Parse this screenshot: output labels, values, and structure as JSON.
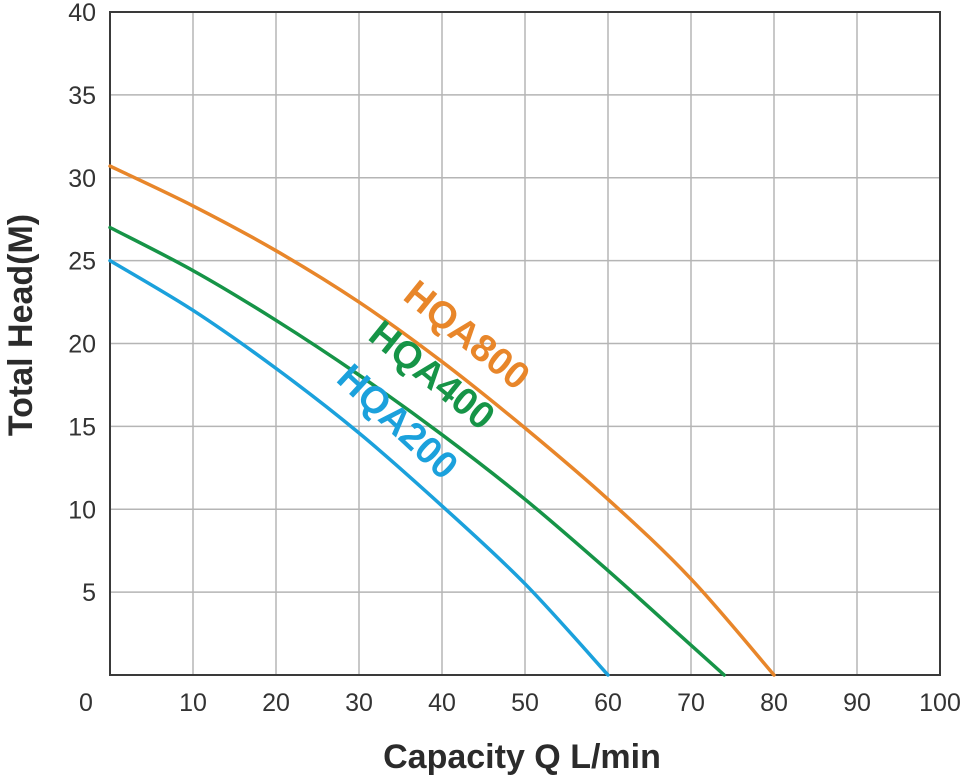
{
  "chart_data": {
    "type": "line",
    "title": "",
    "xlabel": "Capacity Q L/min",
    "ylabel": "Total Head(M)",
    "xlim": [
      0,
      100
    ],
    "ylim": [
      0,
      40
    ],
    "x_ticks": [
      "0",
      "10",
      "20",
      "30",
      "40",
      "50",
      "60",
      "70",
      "80",
      "90",
      "100"
    ],
    "y_ticks": [
      "5",
      "10",
      "15",
      "20",
      "25",
      "30",
      "35",
      "40"
    ],
    "grid": true,
    "legend": "inline labels on curves",
    "series": [
      {
        "name": "HQA800",
        "color": "#E8862A",
        "x": [
          0,
          10,
          20,
          30,
          40,
          50,
          60,
          70,
          80
        ],
        "y": [
          30.7,
          28.3,
          25.6,
          22.5,
          18.9,
          14.9,
          10.6,
          5.8,
          0
        ]
      },
      {
        "name": "HQA400",
        "color": "#169447",
        "x": [
          0,
          10,
          20,
          30,
          40,
          50,
          60,
          70,
          74
        ],
        "y": [
          27.0,
          24.4,
          21.4,
          18.1,
          14.5,
          10.6,
          6.3,
          1.8,
          0
        ]
      },
      {
        "name": "HQA200",
        "color": "#1BA1DC",
        "x": [
          0,
          10,
          20,
          30,
          40,
          50,
          60
        ],
        "y": [
          25.0,
          22.0,
          18.5,
          14.6,
          10.2,
          5.5,
          0
        ]
      }
    ]
  }
}
